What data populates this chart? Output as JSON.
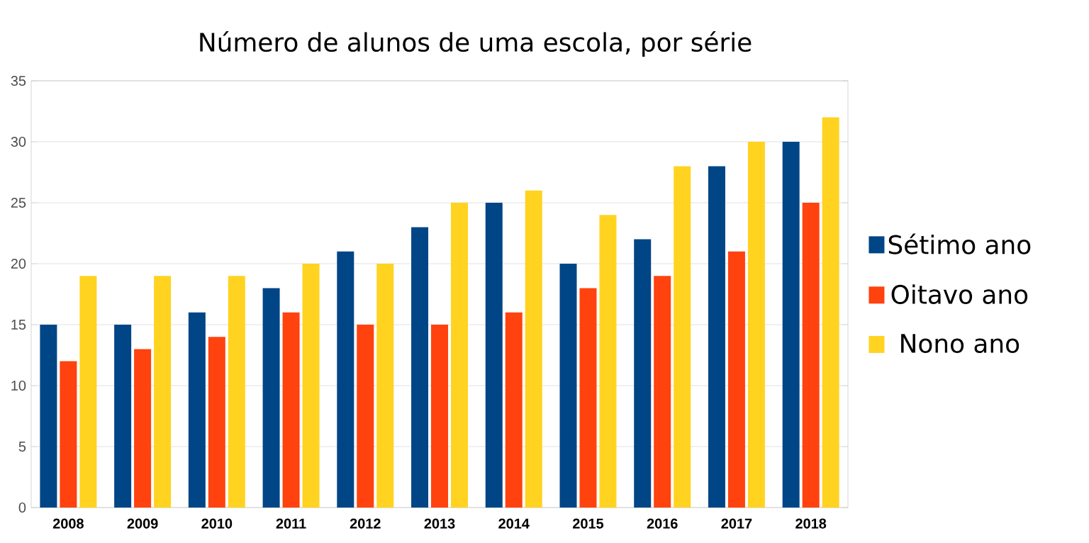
{
  "chart_data": {
    "type": "bar",
    "title": "Número de alunos de uma escola, por série",
    "categories": [
      "2008",
      "2009",
      "2010",
      "2011",
      "2012",
      "2013",
      "2014",
      "2015",
      "2016",
      "2017",
      "2018"
    ],
    "series": [
      {
        "name": "Sétimo ano",
        "color": "#004586",
        "values": [
          15,
          15,
          16,
          18,
          21,
          23,
          25,
          20,
          22,
          28,
          30
        ]
      },
      {
        "name": "Oitavo ano",
        "color": "#ff420e",
        "values": [
          12,
          13,
          14,
          16,
          15,
          15,
          16,
          18,
          19,
          21,
          25
        ]
      },
      {
        "name": "Nono ano",
        "color": "#ffd320",
        "values": [
          19,
          19,
          19,
          20,
          20,
          25,
          26,
          24,
          28,
          30,
          32
        ]
      }
    ],
    "ylim": [
      0,
      35
    ],
    "yticks": [
      0,
      5,
      10,
      15,
      20,
      25,
      30,
      35
    ],
    "grid": "y",
    "legend": "right"
  }
}
